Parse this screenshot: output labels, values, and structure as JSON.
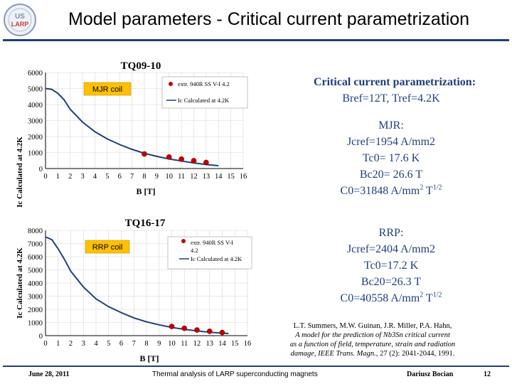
{
  "slide": {
    "title": "Model parameters - Critical current parametrization",
    "logo_text_top": "US",
    "logo_text_bottom": "LARP"
  },
  "right_panel": {
    "header_line1": "Critical  current parametrization:",
    "header_line2": "Bref=12T, Tref=4.2K",
    "mjr_lines": [
      "MJR:",
      "Jcref=1954 A/mm2",
      "Tc0= 17.6 K",
      "Bc20= 26.6  T"
    ],
    "mjr_c0": "C0=31848 A/mm",
    "mjr_c0_sup1": "2",
    "mjr_c0_unit": " T",
    "mjr_c0_sup2": "1/2",
    "rrp_lines": [
      "RRP:",
      "Jcref=2404 A/mm2",
      "Tc0=17.2 K",
      "Bc20=26.3 T"
    ],
    "rrp_c0": "C0=40558 A/mm",
    "rrp_c0_sup1": "2",
    "rrp_c0_unit": " T",
    "rrp_c0_sup2": "1/2"
  },
  "reference": {
    "authors": "L.T. Summers, M.W. Guinan, J.R. Miller, P.A. Hahn,",
    "title_line1": "A model for the prediction of Nb3Sn critical current",
    "title_line2": "as a function of field, temperature, strain and radiation",
    "journal": "damage, IEEE Trans. Magn.,",
    "citation": " 27 (2): 2041-2044, 1991."
  },
  "footer": {
    "date": "June 28, 2011",
    "center": "Thermal analysis of LARP superconducting magnets",
    "author": "Dariusz Bocian",
    "page": "12"
  },
  "colors": {
    "curve": "#1f3f7a",
    "markers": "#c00000",
    "title_rule": "#1f3f7a",
    "box_label": "#ffc000",
    "right_text": "#1f3f7a"
  },
  "chart_data": [
    {
      "type": "scatter",
      "title": "TQ09-10",
      "ylabel": "Ic Calculated at 4.2K",
      "xlabel": "B [T]",
      "xlim": [
        0,
        16
      ],
      "ylim": [
        0,
        6000
      ],
      "xticks": [
        0,
        1,
        2,
        3,
        4,
        5,
        6,
        7,
        8,
        9,
        10,
        11,
        12,
        13,
        14,
        15,
        16
      ],
      "yticks": [
        0,
        1000,
        2000,
        3000,
        4000,
        5000,
        6000
      ],
      "box_label": "MJR coil",
      "legend": [
        "extr. 940R SS V-I 4.2",
        "Ic Calculated at 4.2K"
      ],
      "series": [
        {
          "name": "extr. 940R SS V-I 4.2",
          "x": [
            8,
            10,
            11,
            12,
            13
          ],
          "y": [
            910,
            720,
            590,
            490,
            380
          ]
        },
        {
          "name": "Ic Calculated at 4.2K",
          "x": [
            0,
            0.5,
            1,
            1.5,
            2,
            3,
            4,
            5,
            6,
            7,
            8,
            9,
            10,
            11,
            12,
            13,
            14
          ],
          "y": [
            5000,
            4950,
            4700,
            4300,
            3700,
            2900,
            2300,
            1850,
            1500,
            1200,
            950,
            760,
            600,
            470,
            350,
            250,
            180
          ]
        }
      ]
    },
    {
      "type": "scatter",
      "title": "TQ16-17",
      "ylabel": "Ic Calculated at 4.2K",
      "xlabel": "B [T]",
      "xlim": [
        0,
        16
      ],
      "ylim": [
        0,
        8000
      ],
      "xticks": [
        0,
        1,
        2,
        3,
        4,
        5,
        6,
        7,
        8,
        9,
        10,
        11,
        12,
        13,
        14,
        15,
        16
      ],
      "yticks": [
        0,
        1000,
        2000,
        3000,
        4000,
        5000,
        6000,
        7000,
        8000
      ],
      "box_label": "RRP coil",
      "legend": [
        "extr. 940R SS V-I 4.2",
        "Ic Calculated at 4.2K"
      ],
      "series": [
        {
          "name": "extr. 940R SS V-I 4.2",
          "x": [
            10,
            11,
            12,
            13,
            14
          ],
          "y": [
            700,
            560,
            430,
            330,
            240
          ]
        },
        {
          "name": "Ic Calculated at 4.2K",
          "x": [
            0,
            0.5,
            1,
            1.5,
            2,
            3,
            4,
            5,
            6,
            7,
            8,
            9,
            10,
            11,
            12,
            13,
            14,
            14.5
          ],
          "y": [
            7500,
            7300,
            6600,
            5800,
            4900,
            3700,
            2800,
            2200,
            1750,
            1350,
            1050,
            820,
            630,
            480,
            360,
            260,
            190,
            160
          ]
        }
      ]
    }
  ]
}
